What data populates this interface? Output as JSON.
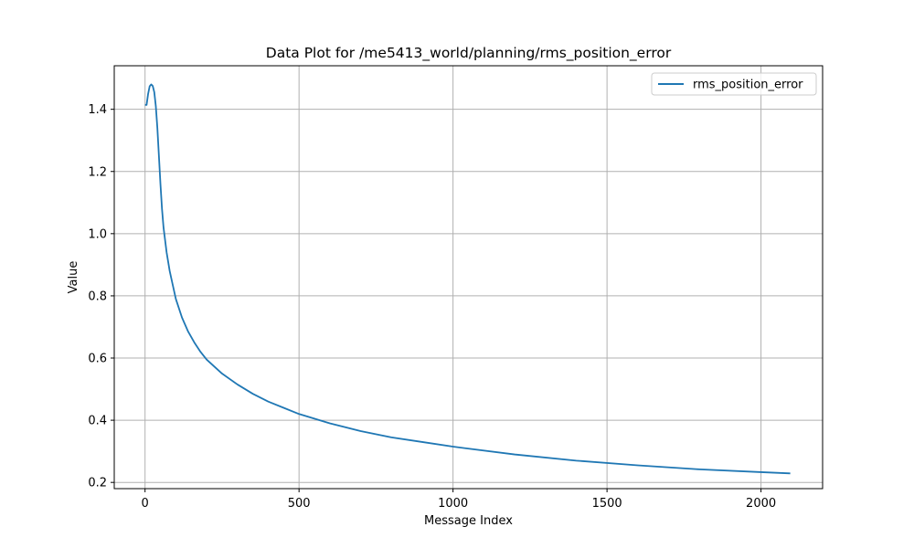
{
  "chart_data": {
    "type": "line",
    "title": "Data Plot for /me5413_world/planning/rms_position_error",
    "xlabel": "Message Index",
    "ylabel": "Value",
    "xlim": [
      -100,
      2200
    ],
    "ylim": [
      0.18,
      1.54
    ],
    "xticks": [
      0,
      500,
      1000,
      1500,
      2000
    ],
    "yticks": [
      0.2,
      0.4,
      0.6,
      0.8,
      1.0,
      1.2,
      1.4
    ],
    "xtick_labels": [
      "0",
      "500",
      "1000",
      "1500",
      "2000"
    ],
    "ytick_labels": [
      "0.2",
      "0.4",
      "0.6",
      "0.8",
      "1.0",
      "1.2",
      "1.4"
    ],
    "grid": true,
    "legend_position": "top-right",
    "colors": {
      "line": "#1f77b4",
      "grid": "#b0b0b0",
      "axes": "#000000"
    },
    "series": [
      {
        "name": "rms_position_error",
        "x": [
          0,
          5,
          10,
          15,
          20,
          25,
          30,
          35,
          40,
          45,
          50,
          55,
          60,
          70,
          80,
          90,
          100,
          120,
          140,
          160,
          180,
          200,
          250,
          300,
          350,
          400,
          450,
          500,
          600,
          700,
          800,
          900,
          1000,
          1200,
          1400,
          1600,
          1800,
          2000,
          2095
        ],
        "y": [
          1.414,
          1.414,
          1.45,
          1.474,
          1.48,
          1.475,
          1.455,
          1.41,
          1.34,
          1.25,
          1.16,
          1.08,
          1.02,
          0.94,
          0.88,
          0.835,
          0.79,
          0.73,
          0.685,
          0.65,
          0.62,
          0.595,
          0.55,
          0.515,
          0.485,
          0.46,
          0.44,
          0.42,
          0.39,
          0.365,
          0.345,
          0.33,
          0.315,
          0.29,
          0.27,
          0.255,
          0.242,
          0.233,
          0.229
        ]
      }
    ]
  }
}
